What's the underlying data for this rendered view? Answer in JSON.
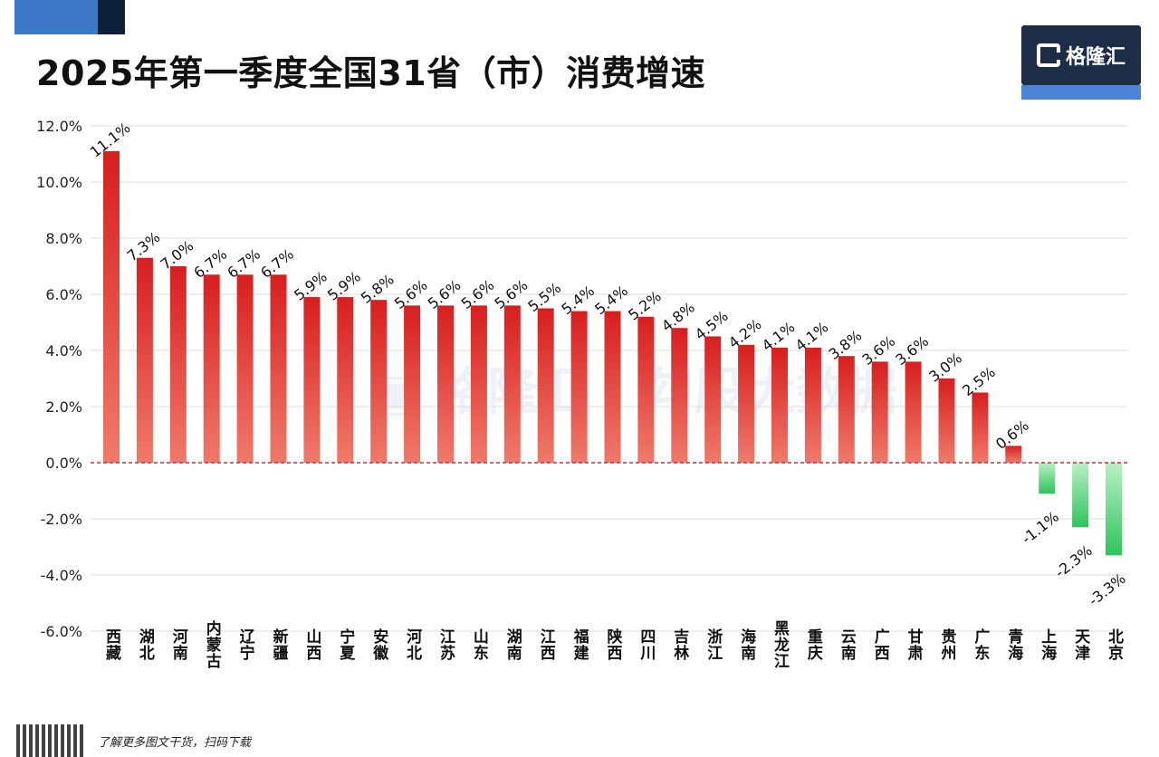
{
  "header": {
    "title": "2025年第一季度全国31省（市）消费增速",
    "logo_text": "格隆汇"
  },
  "footer": {
    "text": "了解更多图文干货，扫码下载"
  },
  "colors": {
    "positive": "#e02424",
    "positive_light": "#f07a6a",
    "negative": "#2ec45a",
    "negative_light": "#b8f0c6",
    "zero_line": "#c23030",
    "grid": "#dddddd"
  },
  "chart_data": {
    "type": "bar",
    "title": "2025年第一季度全国31省（市）消费增速",
    "xlabel": "",
    "ylabel": "",
    "ylim": [
      -6,
      12
    ],
    "yticks": [
      12,
      10,
      8,
      6,
      4,
      2,
      0,
      -2,
      -4,
      -6
    ],
    "ytick_labels": [
      "12.0%",
      "10.0%",
      "8.0%",
      "6.0%",
      "4.0%",
      "2.0%",
      "0.0%",
      "-2.0%",
      "-4.0%",
      "-6.0%"
    ],
    "grid": true,
    "categories": [
      "西藏",
      "湖北",
      "河南",
      "内蒙古",
      "辽宁",
      "新疆",
      "山西",
      "宁夏",
      "安徽",
      "河北",
      "江苏",
      "山东",
      "湖南",
      "江西",
      "福建",
      "陕西",
      "四川",
      "吉林",
      "浙江",
      "海南",
      "黑龙江",
      "重庆",
      "云南",
      "广西",
      "甘肃",
      "贵州",
      "广东",
      "青海",
      "上海",
      "天津",
      "北京"
    ],
    "values": [
      11.1,
      7.3,
      7.0,
      6.7,
      6.7,
      6.7,
      5.9,
      5.9,
      5.8,
      5.6,
      5.6,
      5.6,
      5.6,
      5.5,
      5.4,
      5.4,
      5.2,
      4.8,
      4.5,
      4.2,
      4.1,
      4.1,
      3.8,
      3.6,
      3.6,
      3.0,
      2.5,
      0.6,
      -1.1,
      -2.3,
      -3.3
    ],
    "data_labels": [
      "11.1%",
      "7.3%",
      "7.0%",
      "6.7%",
      "6.7%",
      "6.7%",
      "5.9%",
      "5.9%",
      "5.8%",
      "5.6%",
      "5.6%",
      "5.6%",
      "5.6%",
      "5.5%",
      "5.4%",
      "5.4%",
      "5.2%",
      "4.8%",
      "4.5%",
      "4.2%",
      "4.1%",
      "4.1%",
      "3.8%",
      "3.6%",
      "3.6%",
      "3.0%",
      "2.5%",
      "0.6%",
      "-1.1%",
      "-2.3%",
      "-3.3%"
    ]
  }
}
